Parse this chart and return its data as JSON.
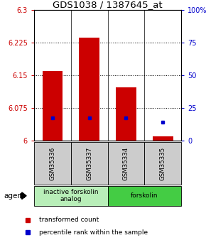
{
  "title": "GDS1038 / 1387645_at",
  "samples": [
    "GSM35336",
    "GSM35337",
    "GSM35334",
    "GSM35335"
  ],
  "red_values": [
    6.16,
    6.237,
    6.122,
    6.01
  ],
  "blue_values": [
    6.053,
    6.053,
    6.053,
    6.043
  ],
  "ylim_left": [
    6.0,
    6.3
  ],
  "ylim_right": [
    0,
    100
  ],
  "yticks_left": [
    6.0,
    6.075,
    6.15,
    6.225,
    6.3
  ],
  "yticks_right": [
    0,
    25,
    50,
    75,
    100
  ],
  "ytick_labels_left": [
    "6",
    "6.075",
    "6.15",
    "6.225",
    "6.3"
  ],
  "ytick_labels_right": [
    "0",
    "25",
    "50",
    "75",
    "100%"
  ],
  "hlines": [
    6.075,
    6.15,
    6.225
  ],
  "groups": [
    {
      "label": "inactive forskolin\nanalog",
      "cols": [
        0,
        1
      ],
      "color": "#b8eeb8"
    },
    {
      "label": "forskolin",
      "cols": [
        2,
        3
      ],
      "color": "#44cc44"
    }
  ],
  "bar_bottom": 6.0,
  "bar_width": 0.55,
  "red_color": "#cc0000",
  "blue_color": "#0000cc",
  "title_fontsize": 9.5,
  "tick_fontsize": 7,
  "label_color_left": "#cc0000",
  "label_color_right": "#0000cc",
  "sample_box_color": "#cccccc",
  "legend_items": [
    "transformed count",
    "percentile rank within the sample"
  ]
}
